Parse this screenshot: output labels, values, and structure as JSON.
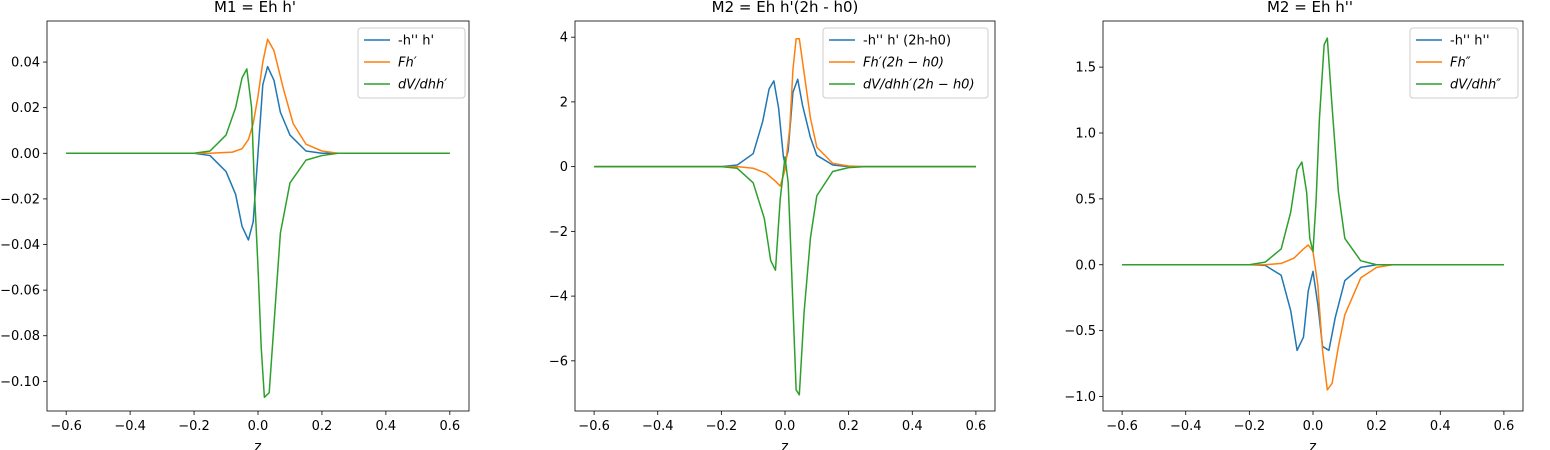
{
  "figure": {
    "background": "#ffffff"
  },
  "chart_data": [
    {
      "type": "line",
      "title": "M1 = Eh h'",
      "xlabel": "z",
      "ylabel": "",
      "xlim": [
        -0.66,
        0.66
      ],
      "ylim": [
        -0.113,
        0.058
      ],
      "xticks": [
        -0.6,
        -0.4,
        -0.2,
        0.0,
        0.2,
        0.4,
        0.6
      ],
      "xtick_labels": [
        "−0.6",
        "−0.4",
        "−0.2",
        "0.0",
        "0.2",
        "0.4",
        "0.6"
      ],
      "yticks": [
        -0.1,
        -0.08,
        -0.06,
        -0.04,
        -0.02,
        0.0,
        0.02,
        0.04
      ],
      "ytick_labels": [
        "−0.10",
        "−0.08",
        "−0.06",
        "−0.04",
        "−0.02",
        "0.00",
        "0.02",
        "0.04"
      ],
      "grid": false,
      "legend_position": "top-right",
      "series": [
        {
          "name": "-h'' h'",
          "color": "#1f77b4",
          "italic": false,
          "x": [
            -0.6,
            -0.2,
            -0.15,
            -0.1,
            -0.07,
            -0.05,
            -0.03,
            -0.015,
            0.0,
            0.015,
            0.03,
            0.05,
            0.07,
            0.1,
            0.15,
            0.2,
            0.6
          ],
          "y": [
            0,
            0,
            -0.001,
            -0.008,
            -0.018,
            -0.032,
            -0.038,
            -0.03,
            0.0,
            0.03,
            0.038,
            0.032,
            0.018,
            0.008,
            0.001,
            0,
            0
          ]
        },
        {
          "name": "Fh′",
          "color": "#ff7f0e",
          "italic": true,
          "x": [
            -0.6,
            -0.15,
            -0.08,
            -0.05,
            -0.03,
            -0.015,
            0.0,
            0.015,
            0.03,
            0.05,
            0.08,
            0.11,
            0.15,
            0.2,
            0.25,
            0.6
          ],
          "y": [
            0,
            0,
            0.0005,
            0.002,
            0.006,
            0.013,
            0.025,
            0.04,
            0.05,
            0.045,
            0.028,
            0.013,
            0.004,
            0.001,
            0,
            0
          ]
        },
        {
          "name": "dV/dhh′",
          "color": "#2ca02c",
          "italic": true,
          "x": [
            -0.6,
            -0.2,
            -0.15,
            -0.1,
            -0.07,
            -0.05,
            -0.035,
            -0.02,
            -0.01,
            0.0,
            0.01,
            0.02,
            0.035,
            0.05,
            0.07,
            0.1,
            0.15,
            0.2,
            0.25,
            0.6
          ],
          "y": [
            0,
            0,
            0.001,
            0.008,
            0.02,
            0.033,
            0.037,
            0.02,
            -0.02,
            -0.05,
            -0.085,
            -0.107,
            -0.105,
            -0.075,
            -0.035,
            -0.013,
            -0.003,
            -0.001,
            0,
            0
          ]
        }
      ]
    },
    {
      "type": "line",
      "title": "M2 = Eh h'(2h - h0)",
      "xlabel": "z",
      "ylabel": "",
      "xlim": [
        -0.66,
        0.66
      ],
      "ylim": [
        -7.55,
        4.5
      ],
      "xticks": [
        -0.6,
        -0.4,
        -0.2,
        0.0,
        0.2,
        0.4,
        0.6
      ],
      "xtick_labels": [
        "−0.6",
        "−0.4",
        "−0.2",
        "0.0",
        "0.2",
        "0.4",
        "0.6"
      ],
      "yticks": [
        -6,
        -4,
        -2,
        0,
        2,
        4
      ],
      "ytick_labels": [
        "−6",
        "−4",
        "−2",
        "0",
        "2",
        "4"
      ],
      "grid": false,
      "legend_position": "top-right",
      "series": [
        {
          "name": "-h'' h' (2h-h0)",
          "color": "#1f77b4",
          "italic": false,
          "x": [
            -0.6,
            -0.2,
            -0.15,
            -0.1,
            -0.07,
            -0.05,
            -0.035,
            -0.02,
            -0.005,
            0.0,
            0.01,
            0.025,
            0.04,
            0.055,
            0.08,
            0.1,
            0.15,
            0.2,
            0.6
          ],
          "y": [
            0,
            0,
            0.05,
            0.4,
            1.4,
            2.4,
            2.65,
            1.8,
            0.3,
            0.1,
            0.5,
            2.3,
            2.7,
            1.9,
            0.9,
            0.35,
            0.05,
            0,
            0
          ]
        },
        {
          "name": "Fh′(2h − h0)",
          "color": "#ff7f0e",
          "italic": true,
          "x": [
            -0.6,
            -0.15,
            -0.1,
            -0.06,
            -0.03,
            -0.015,
            0.0,
            0.015,
            0.025,
            0.035,
            0.045,
            0.06,
            0.08,
            0.1,
            0.15,
            0.2,
            0.25,
            0.6
          ],
          "y": [
            0,
            0,
            -0.05,
            -0.2,
            -0.45,
            -0.6,
            -0.1,
            1.2,
            3.0,
            3.95,
            3.95,
            2.9,
            1.5,
            0.6,
            0.1,
            0.02,
            0,
            0
          ]
        },
        {
          "name": "dV/dhh′(2h − h0)",
          "color": "#2ca02c",
          "italic": true,
          "x": [
            -0.6,
            -0.2,
            -0.15,
            -0.1,
            -0.065,
            -0.045,
            -0.03,
            -0.015,
            0.0,
            0.01,
            0.02,
            0.035,
            0.045,
            0.06,
            0.08,
            0.1,
            0.15,
            0.2,
            0.25,
            0.6
          ],
          "y": [
            0,
            0,
            -0.05,
            -0.5,
            -1.6,
            -2.9,
            -3.2,
            -1.0,
            0.3,
            -0.5,
            -3.0,
            -6.9,
            -7.05,
            -4.5,
            -2.2,
            -0.9,
            -0.15,
            -0.03,
            0,
            0
          ]
        }
      ]
    },
    {
      "type": "line",
      "title": "M2 = Eh h''",
      "xlabel": "z",
      "ylabel": "",
      "xlim": [
        -0.66,
        0.66
      ],
      "ylim": [
        -1.11,
        1.85
      ],
      "xticks": [
        -0.6,
        -0.4,
        -0.2,
        0.0,
        0.2,
        0.4,
        0.6
      ],
      "xtick_labels": [
        "−0.6",
        "−0.4",
        "−0.2",
        "0.0",
        "0.2",
        "0.4",
        "0.6"
      ],
      "yticks": [
        -1.0,
        -0.5,
        0.0,
        0.5,
        1.0,
        1.5
      ],
      "ytick_labels": [
        "−1.0",
        "−0.5",
        "0.0",
        "0.5",
        "1.0",
        "1.5"
      ],
      "grid": false,
      "legend_position": "top-right",
      "series": [
        {
          "name": "-h'' h''",
          "color": "#1f77b4",
          "italic": false,
          "x": [
            -0.6,
            -0.2,
            -0.15,
            -0.1,
            -0.07,
            -0.05,
            -0.03,
            -0.015,
            0.0,
            0.015,
            0.03,
            0.05,
            0.07,
            0.1,
            0.15,
            0.2,
            0.6
          ],
          "y": [
            0,
            0,
            -0.005,
            -0.08,
            -0.35,
            -0.65,
            -0.55,
            -0.2,
            -0.05,
            -0.3,
            -0.62,
            -0.65,
            -0.4,
            -0.12,
            -0.02,
            0,
            0
          ]
        },
        {
          "name": "Fh″",
          "color": "#ff7f0e",
          "italic": true,
          "x": [
            -0.6,
            -0.15,
            -0.1,
            -0.06,
            -0.03,
            -0.015,
            0.0,
            0.015,
            0.03,
            0.045,
            0.06,
            0.08,
            0.1,
            0.15,
            0.2,
            0.25,
            0.6
          ],
          "y": [
            0,
            0,
            0.01,
            0.05,
            0.12,
            0.15,
            0.1,
            -0.15,
            -0.65,
            -0.95,
            -0.9,
            -0.62,
            -0.38,
            -0.1,
            -0.02,
            0,
            0
          ]
        },
        {
          "name": "dV/dhh″",
          "color": "#2ca02c",
          "italic": true,
          "x": [
            -0.6,
            -0.2,
            -0.15,
            -0.1,
            -0.07,
            -0.05,
            -0.035,
            -0.02,
            -0.01,
            0.0,
            0.01,
            0.02,
            0.035,
            0.045,
            0.06,
            0.08,
            0.1,
            0.15,
            0.2,
            0.6
          ],
          "y": [
            0,
            0,
            0.02,
            0.12,
            0.4,
            0.72,
            0.78,
            0.55,
            0.2,
            0.1,
            0.5,
            1.1,
            1.67,
            1.72,
            1.2,
            0.55,
            0.2,
            0.03,
            0,
            0
          ]
        }
      ]
    }
  ]
}
